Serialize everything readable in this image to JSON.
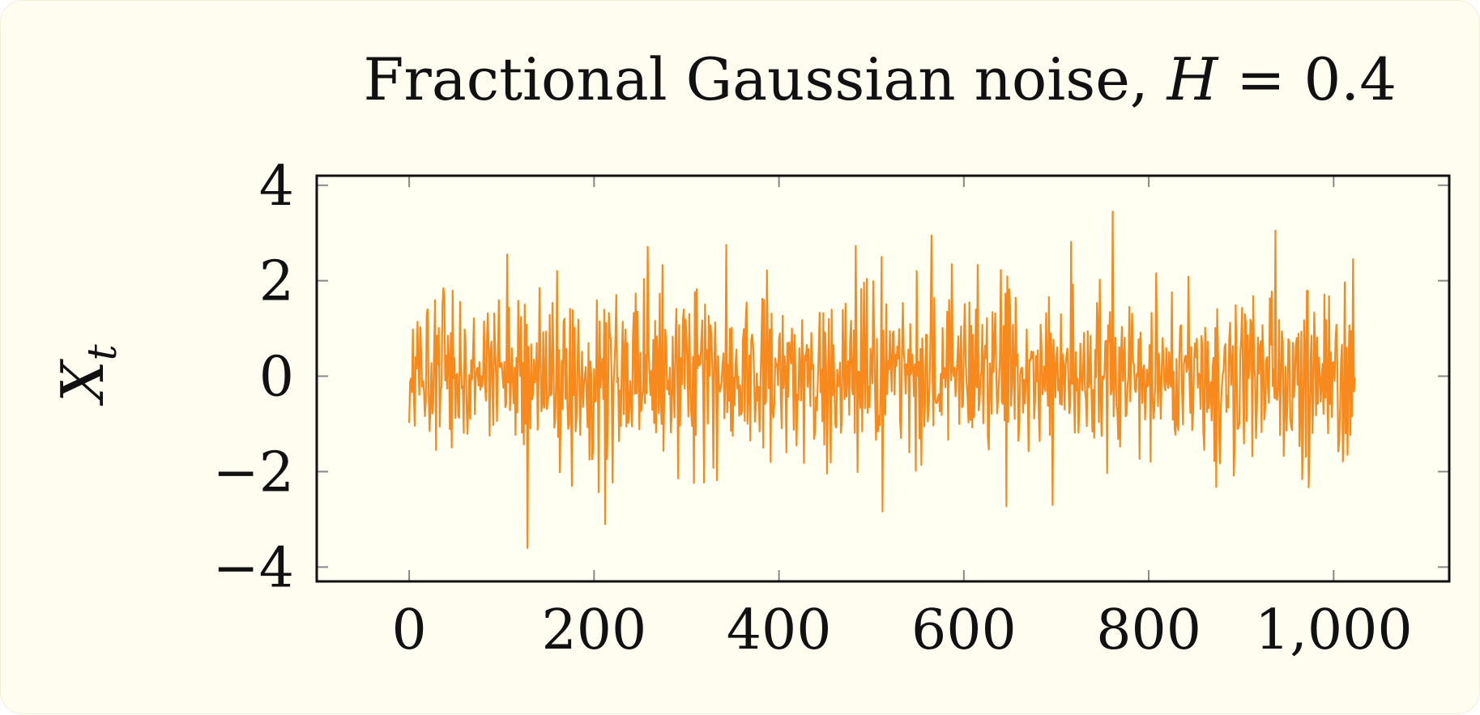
{
  "colors": {
    "background": "#fefdef",
    "plot_background": "#fffff2",
    "series": "#f7891d",
    "axis": "#111111",
    "tick": "#888888"
  },
  "chart_data": {
    "type": "line",
    "title": "Fractional Gaussian noise, H = 0.4",
    "title_parts": {
      "text": "Fractional Gaussian noise, ",
      "var": "H",
      "rest": " = 0.4"
    },
    "xlabel": "",
    "ylabel": "X",
    "ylabel_sub": "t",
    "xlim": [
      -100,
      1125
    ],
    "ylim": [
      -4.3,
      4.2
    ],
    "xticks": [
      0,
      200,
      400,
      600,
      800,
      1000
    ],
    "xtick_labels": [
      "0",
      "200",
      "400",
      "600",
      "800",
      "1,000"
    ],
    "yticks": [
      4,
      2,
      0,
      -2,
      -4
    ],
    "ytick_labels": [
      "4",
      "2",
      "0",
      "−2",
      "−4"
    ],
    "grid": false,
    "legend": "none",
    "series": [
      {
        "x_start": 0,
        "x_end": 1023,
        "n_points": 1024,
        "y_range": [
          -3.6,
          3.45
        ],
        "notable_peaks": [
          {
            "x": 128,
            "y": -3.6
          },
          {
            "x": 212,
            "y": -3.1
          },
          {
            "x": 106,
            "y": 2.55
          },
          {
            "x": 343,
            "y": 2.75
          },
          {
            "x": 565,
            "y": 2.95
          },
          {
            "x": 761,
            "y": 3.45
          },
          {
            "x": 937,
            "y": 3.05
          },
          {
            "x": 696,
            "y": -2.7
          },
          {
            "x": 1021,
            "y": 2.45
          }
        ]
      }
    ]
  }
}
